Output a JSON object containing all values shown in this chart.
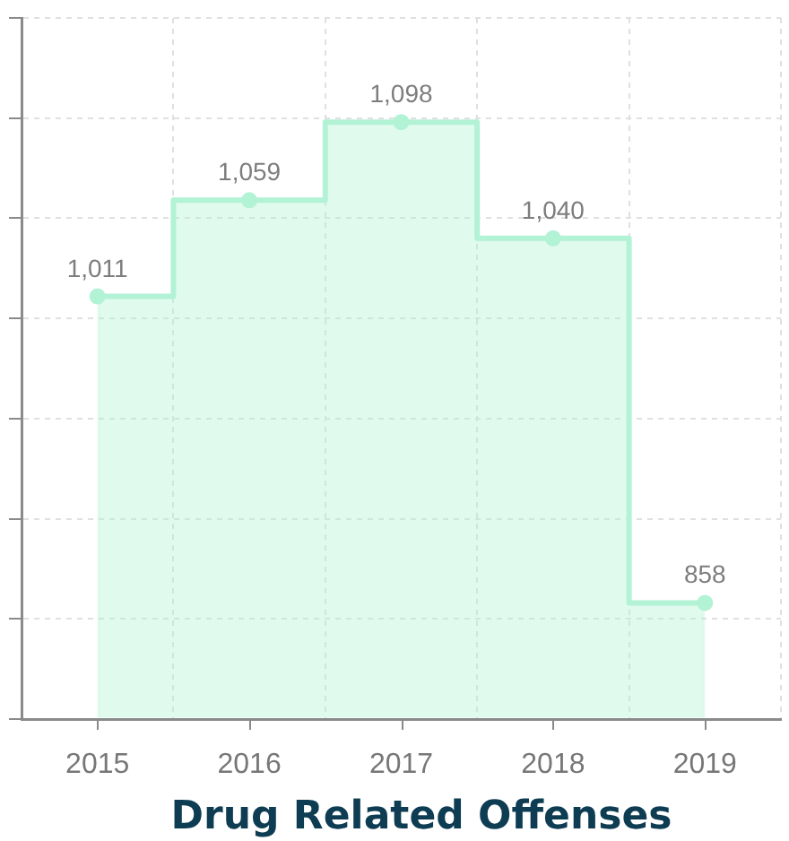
{
  "chart_data": {
    "type": "area",
    "title": "Drug Related Offenses",
    "categories": [
      "2015",
      "2016",
      "2017",
      "2018",
      "2019"
    ],
    "values": [
      1011,
      1059,
      1098,
      1040,
      858
    ],
    "color": "#b2f2d5",
    "value_labels": [
      "1,011",
      "1,059",
      "1,098",
      "1,040",
      "858"
    ],
    "ylim": [
      800,
      1150
    ],
    "yticks": [
      {
        "value": 800,
        "label": null
      },
      {
        "value": 850,
        "label": null
      },
      {
        "value": 900,
        "label": null
      },
      {
        "value": 950,
        "label": null
      },
      {
        "value": 1000,
        "label": null
      },
      {
        "value": 1050,
        "label": null
      },
      {
        "value": 1100,
        "label": null
      },
      {
        "value": 1150,
        "label": null
      }
    ],
    "tick_labels": "x",
    "grid": true,
    "marker": "circle"
  }
}
